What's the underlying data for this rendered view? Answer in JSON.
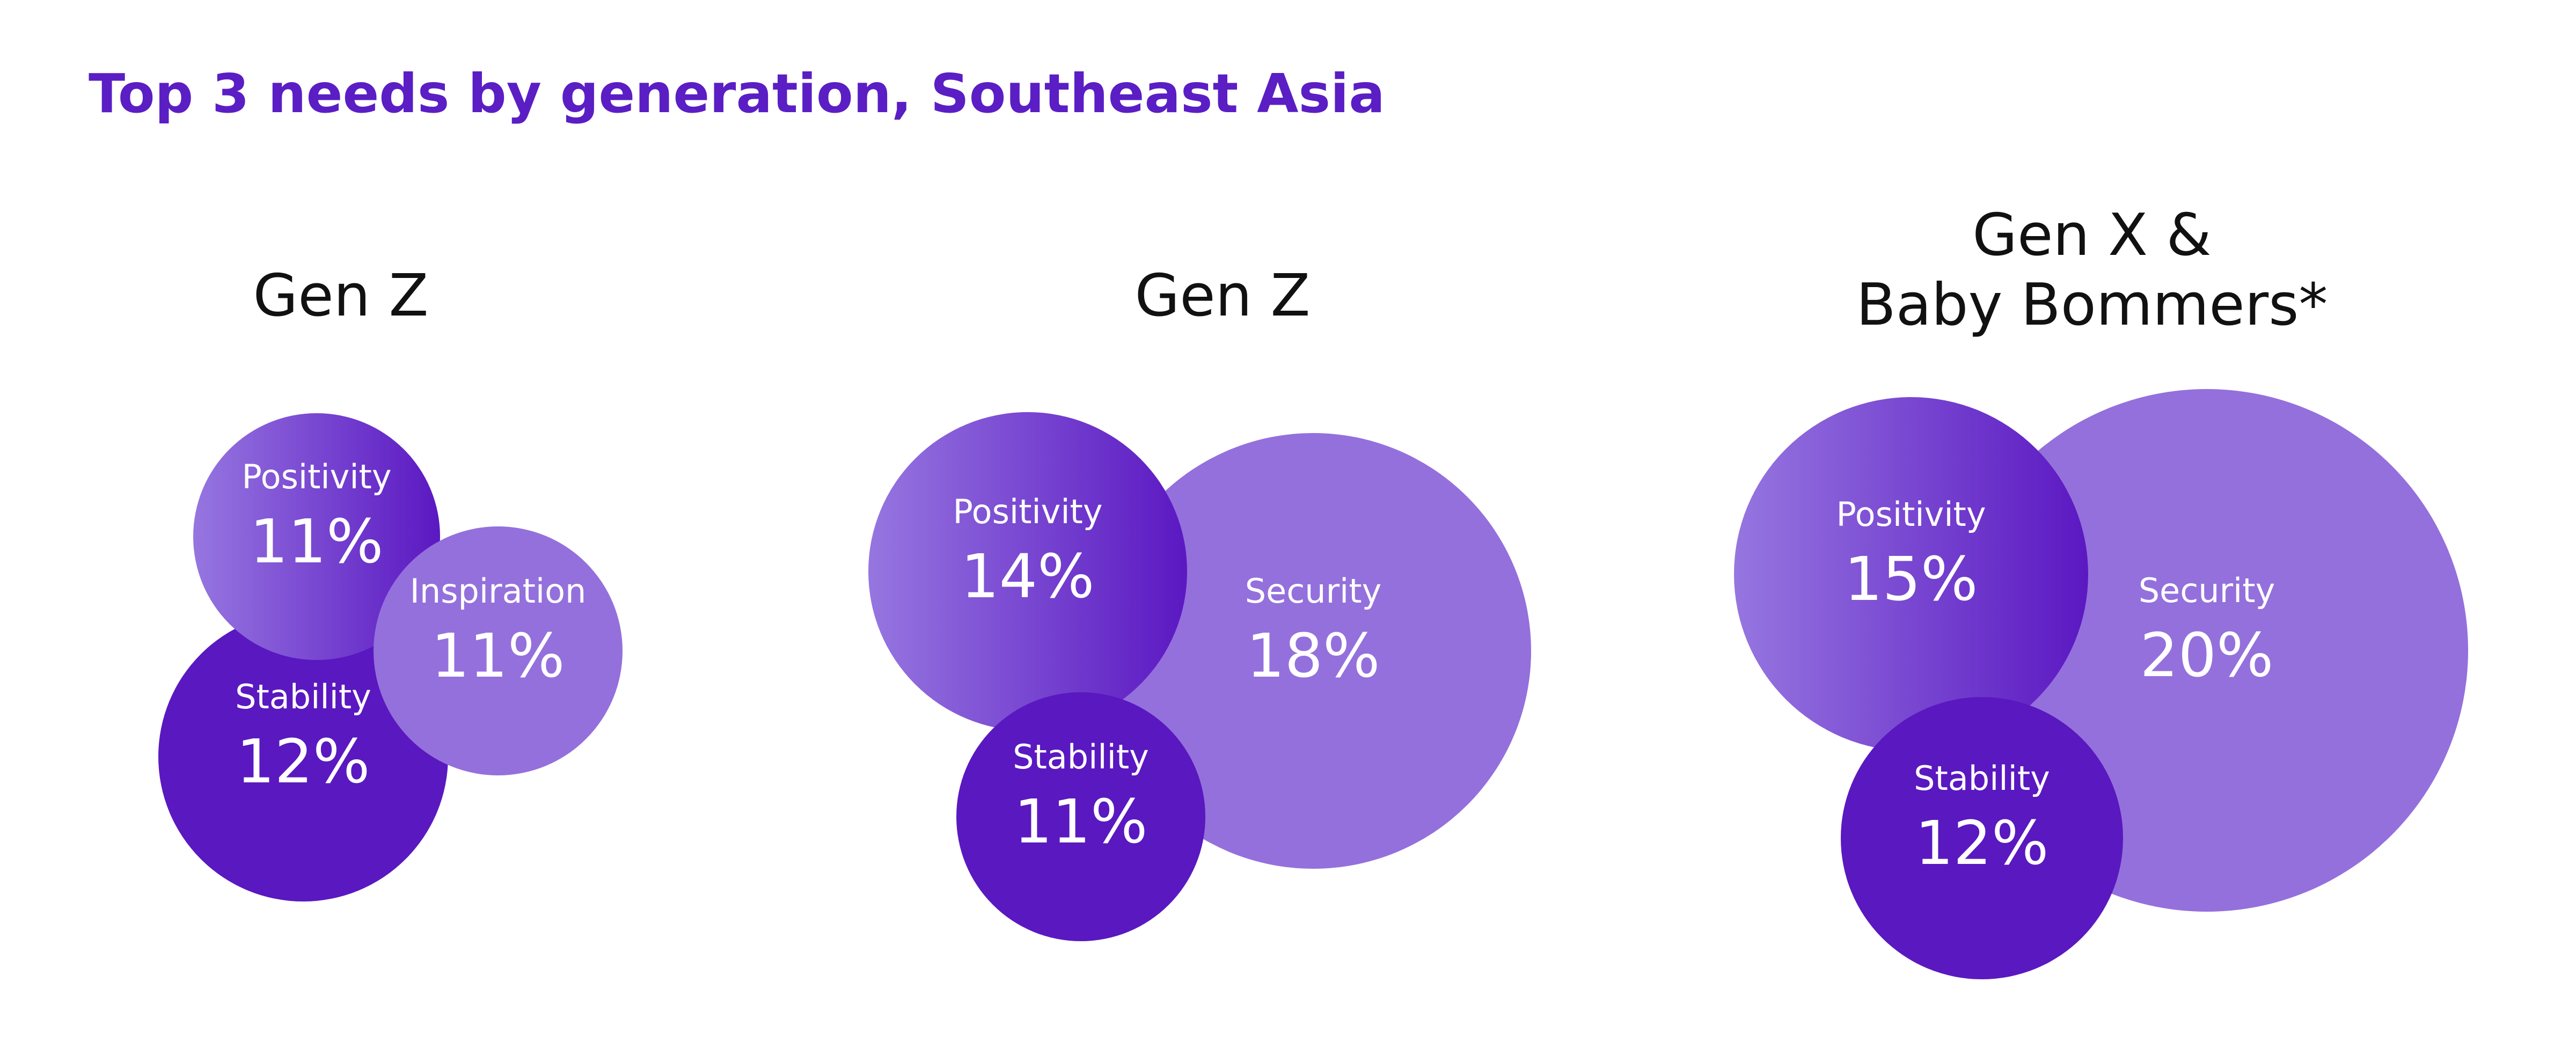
{
  "title": "Top 3 needs by generation, Southeast Asia",
  "colors": {
    "title": "#5a1ec4",
    "dark_purple": "#5a18c0",
    "light_purple": "#9470dc",
    "gradient_light": "#9676e0",
    "gradient_dark": "#5b18c2",
    "generation_title": "#111111",
    "bubble_text": "#ffffff"
  },
  "chart_data": [
    {
      "type": "bubble",
      "title": [
        "Gen Z"
      ],
      "bubbles": [
        {
          "label": "Stability",
          "value": 12,
          "display": "12%"
        },
        {
          "label": "Positivity",
          "value": 11,
          "display": "11%"
        },
        {
          "label": "Inspiration",
          "value": 11,
          "display": "11%"
        }
      ]
    },
    {
      "type": "bubble",
      "title": [
        "Gen Z"
      ],
      "bubbles": [
        {
          "label": "Security",
          "value": 18,
          "display": "18%"
        },
        {
          "label": "Positivity",
          "value": 14,
          "display": "14%"
        },
        {
          "label": "Stability",
          "value": 11,
          "display": "11%"
        }
      ]
    },
    {
      "type": "bubble",
      "title": [
        "Gen X &",
        "Baby Bommers*"
      ],
      "bubbles": [
        {
          "label": "Security",
          "value": 20,
          "display": "20%"
        },
        {
          "label": "Positivity",
          "value": 15,
          "display": "15%"
        },
        {
          "label": "Stability",
          "value": 12,
          "display": "12%"
        }
      ]
    }
  ]
}
